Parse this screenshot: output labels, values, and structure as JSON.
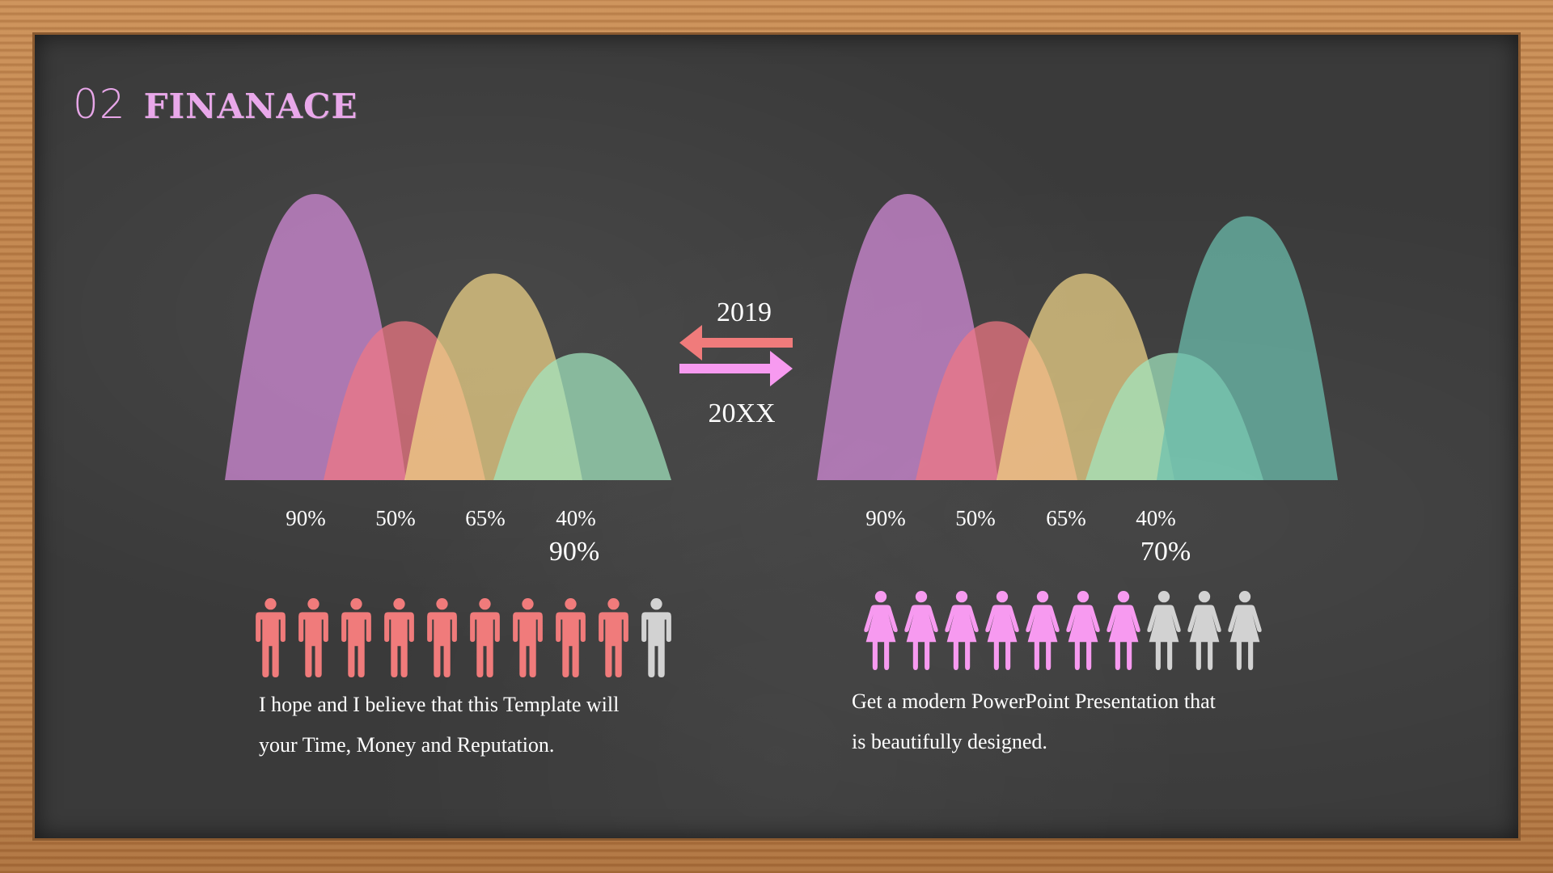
{
  "slide": {
    "number": "02",
    "title": "FINANACE"
  },
  "colors": {
    "purple": "#d08ad6",
    "red": "#f07784",
    "yellow": "#f5d88a",
    "olive": "#d8d476",
    "mint": "#a2e6bf",
    "teal": "#6cbfae",
    "man": "#f07b7b",
    "woman": "#f79af0",
    "gray": "#d2d2d2",
    "title": "#e7a6e8"
  },
  "arrows": {
    "top_year": "2019",
    "bottom_year": "20XX",
    "left_arrow_color": "#f07b7b",
    "right_arrow_color": "#f79af0"
  },
  "chart_data": [
    {
      "type": "area",
      "series": [
        {
          "label": "90%",
          "value": 90,
          "color": "#d08ad6"
        },
        {
          "label": "50%",
          "value": 50,
          "color": "#f07784"
        },
        {
          "label": "65%",
          "value": 65,
          "color": "#f5d88a"
        },
        {
          "label": "40%",
          "value": 40,
          "color": "#a2e6bf"
        }
      ],
      "overlap_colors": [
        "#f07784",
        "#d8d476",
        "#6cbfae"
      ],
      "total": "90%",
      "icons": {
        "type": "man",
        "filled": 9,
        "total": 10
      },
      "description": [
        "I hope and I believe that this Template will",
        "your Time, Money and Reputation."
      ]
    },
    {
      "type": "area",
      "series": [
        {
          "label": "90%",
          "value": 90,
          "color": "#d08ad6"
        },
        {
          "label": "50%",
          "value": 50,
          "color": "#f07784"
        },
        {
          "label": "65%",
          "value": 65,
          "color": "#f5d88a"
        },
        {
          "label": "40%",
          "value": 40,
          "color": "#a2e6bf"
        }
      ],
      "overlap_colors": [
        "#f07784",
        "#d8d476",
        "#6cbfae"
      ],
      "extra_peak_value": 83,
      "total": "70%",
      "icons": {
        "type": "woman",
        "filled": 7,
        "total": 10
      },
      "description": [
        "Get a modern PowerPoint Presentation that",
        "is beautifully designed."
      ]
    }
  ]
}
